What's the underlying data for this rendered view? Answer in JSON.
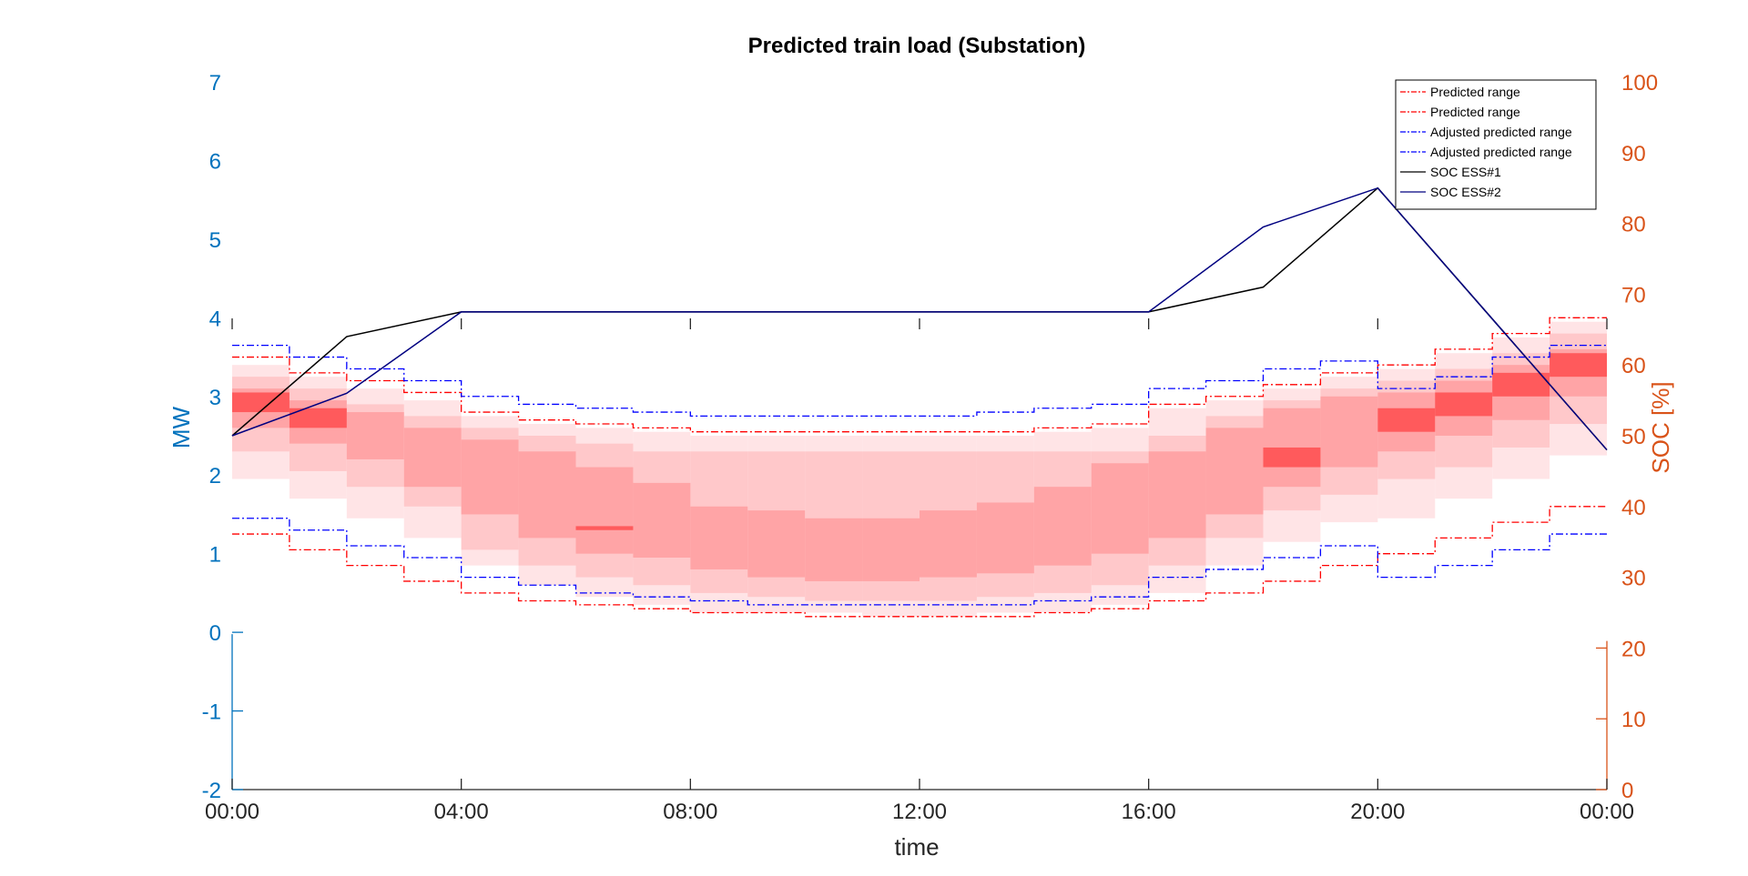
{
  "chart_data": {
    "type": "line",
    "title": "Predicted train load (Substation)",
    "xlabel": "time",
    "ylabel_left": "MW",
    "ylabel_right": "SOC [%]",
    "x_ticks": [
      "00:00",
      "04:00",
      "08:00",
      "12:00",
      "16:00",
      "20:00",
      "00:00"
    ],
    "xlim_hours": [
      0,
      24
    ],
    "y_left_ticks": [
      "7",
      "6",
      "5",
      "4",
      "3",
      "2",
      "1",
      "0",
      "-1",
      "-2"
    ],
    "ylim_left": [
      -2,
      7
    ],
    "y_right_ticks": [
      "100",
      "90",
      "80",
      "70",
      "60",
      "50",
      "40",
      "30",
      "20",
      "10",
      "0"
    ],
    "ylim_right": [
      0,
      100
    ],
    "legend_position": "top-right",
    "legend": [
      {
        "label": "Predicted range",
        "color": "#FF0000",
        "style": "dashdot"
      },
      {
        "label": "Predicted range",
        "color": "#FF0000",
        "style": "dashdot"
      },
      {
        "label": "Adjusted predicted range",
        "color": "#0000FF",
        "style": "dashdot"
      },
      {
        "label": "Adjusted predicted range",
        "color": "#0000FF",
        "style": "dashdot"
      },
      {
        "label": "SOC ESS#1",
        "color": "#000000",
        "style": "solid"
      },
      {
        "label": "SOC ESS#2",
        "color": "#000080",
        "style": "solid"
      }
    ],
    "hours": [
      0,
      1,
      2,
      3,
      4,
      5,
      6,
      7,
      8,
      9,
      10,
      11,
      12,
      13,
      14,
      15,
      16,
      17,
      18,
      19,
      20,
      21,
      22,
      23
    ],
    "predicted_upper_mw": [
      3.5,
      3.3,
      3.2,
      3.05,
      2.8,
      2.7,
      2.65,
      2.6,
      2.55,
      2.55,
      2.55,
      2.55,
      2.55,
      2.55,
      2.6,
      2.65,
      2.9,
      3.0,
      3.15,
      3.3,
      3.4,
      3.6,
      3.8,
      4.0
    ],
    "predicted_lower_mw": [
      1.25,
      1.05,
      0.85,
      0.65,
      0.5,
      0.4,
      0.35,
      0.3,
      0.25,
      0.25,
      0.2,
      0.2,
      0.2,
      0.2,
      0.25,
      0.3,
      0.4,
      0.5,
      0.65,
      0.85,
      1.0,
      1.2,
      1.4,
      1.6
    ],
    "adjusted_upper_mw": [
      3.65,
      3.5,
      3.35,
      3.2,
      3.0,
      2.9,
      2.85,
      2.8,
      2.75,
      2.75,
      2.75,
      2.75,
      2.75,
      2.8,
      2.85,
      2.9,
      3.1,
      3.2,
      3.35,
      3.45,
      3.1,
      3.25,
      3.5,
      3.65
    ],
    "adjusted_lower_mw": [
      1.45,
      1.3,
      1.1,
      0.95,
      0.7,
      0.6,
      0.5,
      0.45,
      0.4,
      0.35,
      0.35,
      0.35,
      0.35,
      0.35,
      0.4,
      0.45,
      0.7,
      0.8,
      0.95,
      1.1,
      0.7,
      0.85,
      1.05,
      1.25
    ],
    "shade_outer_top_mw": [
      3.4,
      3.25,
      3.1,
      2.95,
      2.75,
      2.65,
      2.6,
      2.55,
      2.5,
      2.5,
      2.5,
      2.5,
      2.5,
      2.5,
      2.55,
      2.6,
      2.85,
      2.95,
      3.1,
      3.25,
      3.35,
      3.55,
      3.75,
      3.95
    ],
    "shade_outer_bot_mw": [
      1.95,
      1.7,
      1.45,
      1.2,
      0.85,
      0.6,
      0.45,
      0.35,
      0.25,
      0.25,
      0.25,
      0.2,
      0.2,
      0.25,
      0.25,
      0.35,
      0.5,
      0.85,
      1.15,
      1.4,
      1.45,
      1.7,
      1.95,
      2.25
    ],
    "shade_mid_top_mw": [
      3.25,
      3.1,
      2.9,
      2.75,
      2.6,
      2.5,
      2.4,
      2.3,
      2.3,
      2.3,
      2.3,
      2.3,
      2.3,
      2.3,
      2.3,
      2.3,
      2.5,
      2.75,
      2.95,
      3.1,
      3.2,
      3.35,
      3.55,
      3.8
    ],
    "shade_mid_bot_mw": [
      2.3,
      2.05,
      1.85,
      1.6,
      1.05,
      0.85,
      0.7,
      0.6,
      0.5,
      0.45,
      0.4,
      0.4,
      0.4,
      0.45,
      0.5,
      0.6,
      0.85,
      1.2,
      1.55,
      1.75,
      1.95,
      2.1,
      2.35,
      2.65
    ],
    "shade_core_top_mw": [
      3.1,
      2.95,
      2.8,
      2.6,
      2.45,
      2.3,
      2.1,
      1.9,
      1.6,
      1.55,
      1.45,
      1.45,
      1.55,
      1.65,
      1.85,
      2.15,
      2.3,
      2.6,
      2.85,
      3.0,
      3.05,
      3.2,
      3.4,
      3.6
    ],
    "shade_core_bot_mw": [
      2.6,
      2.4,
      2.2,
      1.85,
      1.5,
      1.2,
      1.0,
      0.95,
      0.8,
      0.7,
      0.65,
      0.65,
      0.7,
      0.75,
      0.85,
      1.0,
      1.2,
      1.5,
      1.85,
      2.1,
      2.3,
      2.5,
      2.7,
      3.0
    ],
    "shade_peak_top_mw": [
      3.05,
      2.85,
      0,
      0,
      0,
      0,
      1.35,
      0,
      0,
      0,
      0,
      0,
      0,
      0,
      0,
      0,
      0,
      0,
      2.35,
      0,
      2.85,
      3.05,
      3.3,
      3.55
    ],
    "shade_peak_bot_mw": [
      2.8,
      2.6,
      0,
      0,
      0,
      0,
      1.3,
      0,
      0,
      0,
      0,
      0,
      0,
      0,
      0,
      0,
      0,
      0,
      2.1,
      0,
      2.55,
      2.75,
      3.0,
      3.25
    ],
    "soc_ess1": {
      "x_hours": [
        0,
        2,
        4,
        16,
        18,
        20,
        24
      ],
      "soc_pct": [
        50,
        64,
        67.5,
        67.5,
        71,
        85,
        48
      ]
    },
    "soc_ess2": {
      "x_hours": [
        0,
        2,
        4,
        16,
        18,
        20,
        24
      ],
      "soc_pct": [
        50,
        56,
        67.5,
        67.5,
        79.5,
        85,
        48
      ]
    }
  }
}
